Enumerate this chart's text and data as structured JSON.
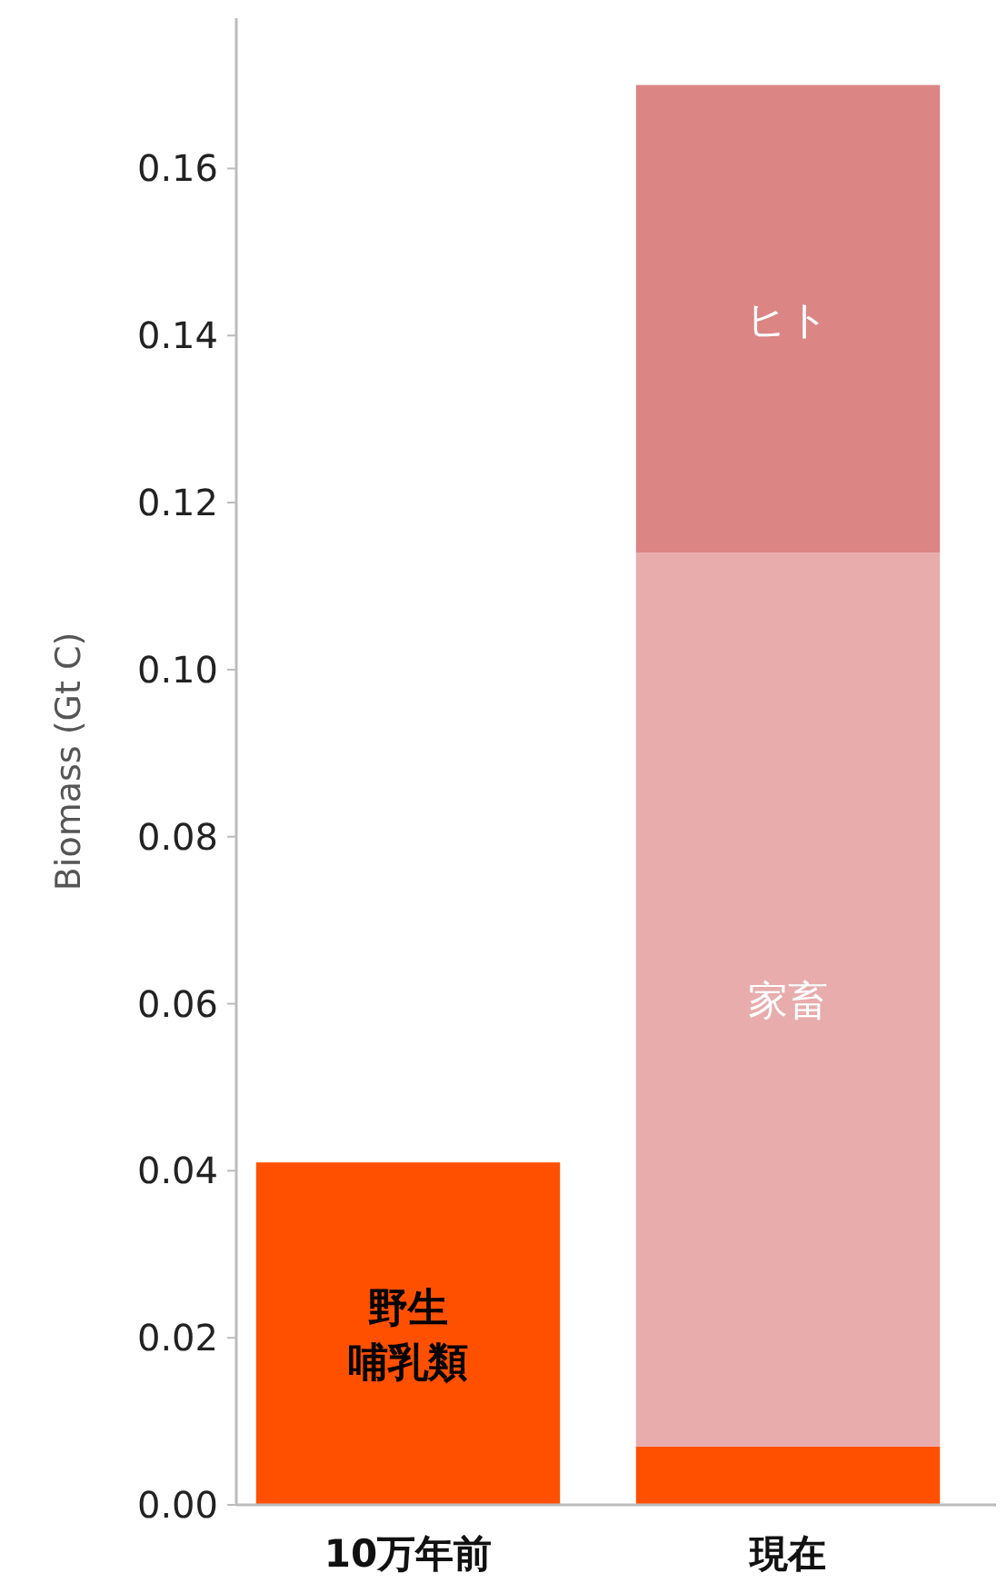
{
  "chart_data": {
    "type": "bar",
    "ylabel": "Biomass (Gt C)",
    "categories": [
      "10万年前",
      "現在"
    ],
    "stacked": true,
    "series": [
      {
        "name": "野生哺乳類",
        "color": "#ff5000",
        "values": [
          0.041,
          0.007
        ]
      },
      {
        "name": "家畜",
        "color": "#e8acac",
        "values": [
          null,
          0.107
        ]
      },
      {
        "name": "ヒト",
        "color": "#db8585",
        "values": [
          null,
          0.056
        ]
      }
    ],
    "ylim": [
      0,
      0.178
    ],
    "yticks": [
      {
        "value": 0,
        "label": "0.00"
      },
      {
        "value": 0.02,
        "label": "0.02"
      },
      {
        "value": 0.04,
        "label": "0.04"
      },
      {
        "value": 0.06,
        "label": "0.06"
      },
      {
        "value": 0.08,
        "label": "0.08"
      },
      {
        "value": 0.1,
        "label": "0.10"
      },
      {
        "value": 0.12,
        "label": "0.12"
      },
      {
        "value": 0.14,
        "label": "0.14"
      },
      {
        "value": 0.16,
        "label": "0.16"
      }
    ],
    "grid": false
  }
}
